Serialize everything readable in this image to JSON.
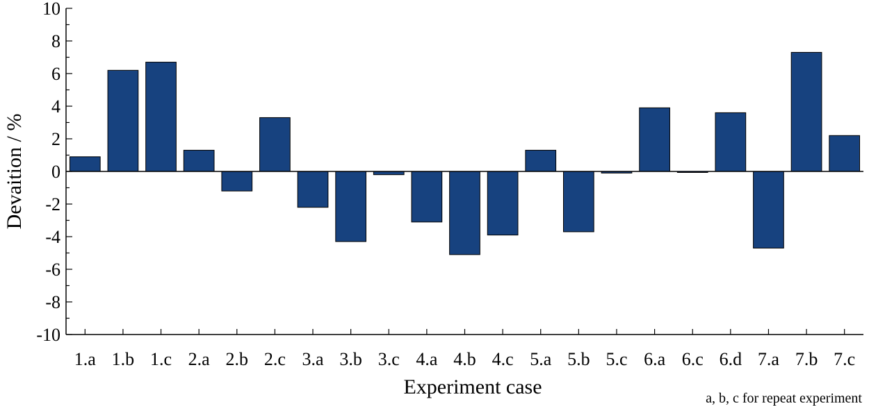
{
  "chart_data": {
    "type": "bar",
    "title": "",
    "xlabel": "Experiment case",
    "ylabel": "Devaition / %",
    "note": "a, b, c for repeat experiment",
    "ylim": [
      -10,
      10
    ],
    "yticks": [
      10,
      8,
      6,
      4,
      2,
      0,
      -2,
      -4,
      -6,
      -8,
      -10
    ],
    "categories": [
      "1.a",
      "1.b",
      "1.c",
      "2.a",
      "2.b",
      "2.c",
      "3.a",
      "3.b",
      "3.c",
      "4.a",
      "4.b",
      "4.c",
      "5.a",
      "5.b",
      "5.c",
      "6.a",
      "6.c",
      "6.d",
      "7.a",
      "7.b",
      "7.c"
    ],
    "values": [
      0.9,
      6.2,
      6.7,
      1.3,
      -1.2,
      3.3,
      -2.2,
      -4.3,
      -0.2,
      -3.1,
      -5.1,
      -3.9,
      1.3,
      -3.7,
      -0.1,
      3.9,
      0.0,
      3.6,
      -4.7,
      7.3,
      2.2
    ],
    "bar_color": "#17427f",
    "grid": false,
    "legend": "none"
  }
}
